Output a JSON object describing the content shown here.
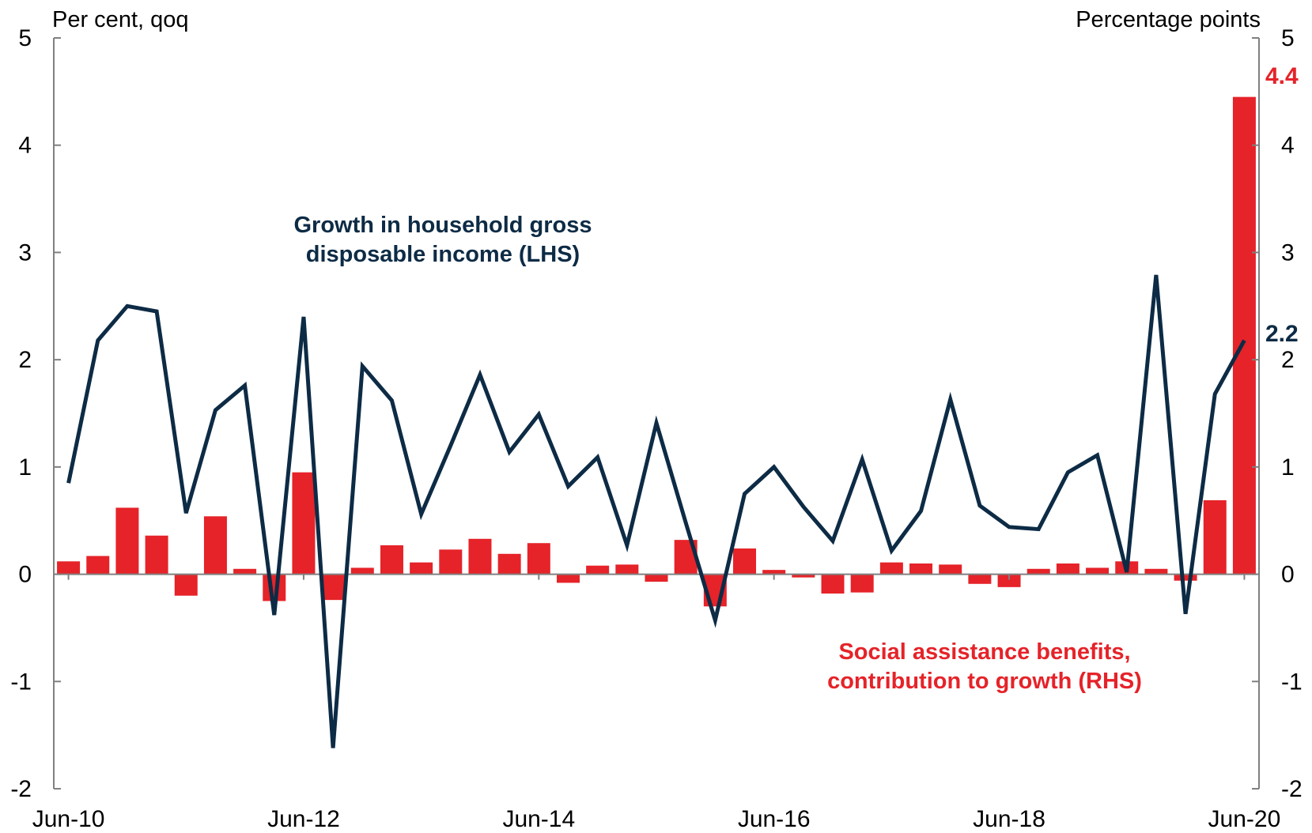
{
  "chart_data": {
    "type": "bar+line",
    "left_axis_label": "Per cent, qoq",
    "right_axis_label": "Percentage points",
    "ylim": [
      -2,
      5
    ],
    "y_ticks": [
      "-2",
      "-1",
      "0",
      "1",
      "2",
      "3",
      "4",
      "5"
    ],
    "x_tick_labels": [
      "Jun-10",
      "Jun-12",
      "Jun-14",
      "Jun-16",
      "Jun-18",
      "Jun-20"
    ],
    "categories": [
      "Jun-10",
      "Sep-10",
      "Dec-10",
      "Mar-11",
      "Jun-11",
      "Sep-11",
      "Dec-11",
      "Mar-12",
      "Jun-12",
      "Sep-12",
      "Dec-12",
      "Mar-13",
      "Jun-13",
      "Sep-13",
      "Dec-13",
      "Mar-14",
      "Jun-14",
      "Sep-14",
      "Dec-14",
      "Mar-15",
      "Jun-15",
      "Sep-15",
      "Dec-15",
      "Mar-16",
      "Jun-16",
      "Sep-16",
      "Dec-16",
      "Mar-17",
      "Jun-17",
      "Sep-17",
      "Dec-17",
      "Mar-18",
      "Jun-18",
      "Sep-18",
      "Dec-18",
      "Mar-19",
      "Jun-19",
      "Sep-19",
      "Dec-19",
      "Mar-20",
      "Jun-20"
    ],
    "series": [
      {
        "name": "Growth in household gross disposable income (LHS)",
        "name_lines": [
          "Growth in household gross",
          "disposable income (LHS)"
        ],
        "type": "line",
        "axis": "left",
        "color": "#0d2b45",
        "values": [
          0.85,
          2.18,
          2.5,
          2.45,
          0.57,
          1.53,
          1.76,
          -0.38,
          2.4,
          -1.62,
          1.94,
          1.62,
          0.56,
          1.2,
          1.86,
          1.14,
          1.49,
          0.82,
          1.09,
          0.27,
          1.41,
          0.48,
          -0.43,
          0.75,
          1.0,
          0.63,
          0.31,
          1.07,
          0.22,
          0.59,
          1.63,
          0.64,
          0.44,
          0.42,
          0.95,
          1.11,
          0.02,
          2.79,
          -0.37,
          1.68,
          2.18
        ],
        "end_label": "2.2"
      },
      {
        "name": "Social assistance benefits, contribution to growth (RHS)",
        "name_lines": [
          "Social assistance benefits,",
          "contribution to growth (RHS)"
        ],
        "type": "bar",
        "axis": "right",
        "color": "#e52329",
        "values": [
          0.12,
          0.17,
          0.62,
          0.36,
          -0.2,
          0.54,
          0.05,
          -0.25,
          0.95,
          -0.24,
          0.06,
          0.27,
          0.11,
          0.23,
          0.33,
          0.19,
          0.29,
          -0.08,
          0.08,
          0.09,
          -0.07,
          0.32,
          -0.3,
          0.24,
          0.04,
          -0.03,
          -0.18,
          -0.17,
          0.11,
          0.1,
          0.09,
          -0.09,
          -0.12,
          0.05,
          0.1,
          0.06,
          0.12,
          0.05,
          -0.06,
          0.69,
          4.45
        ],
        "end_label": "4.4"
      }
    ],
    "grid": false,
    "zero_line": true
  }
}
